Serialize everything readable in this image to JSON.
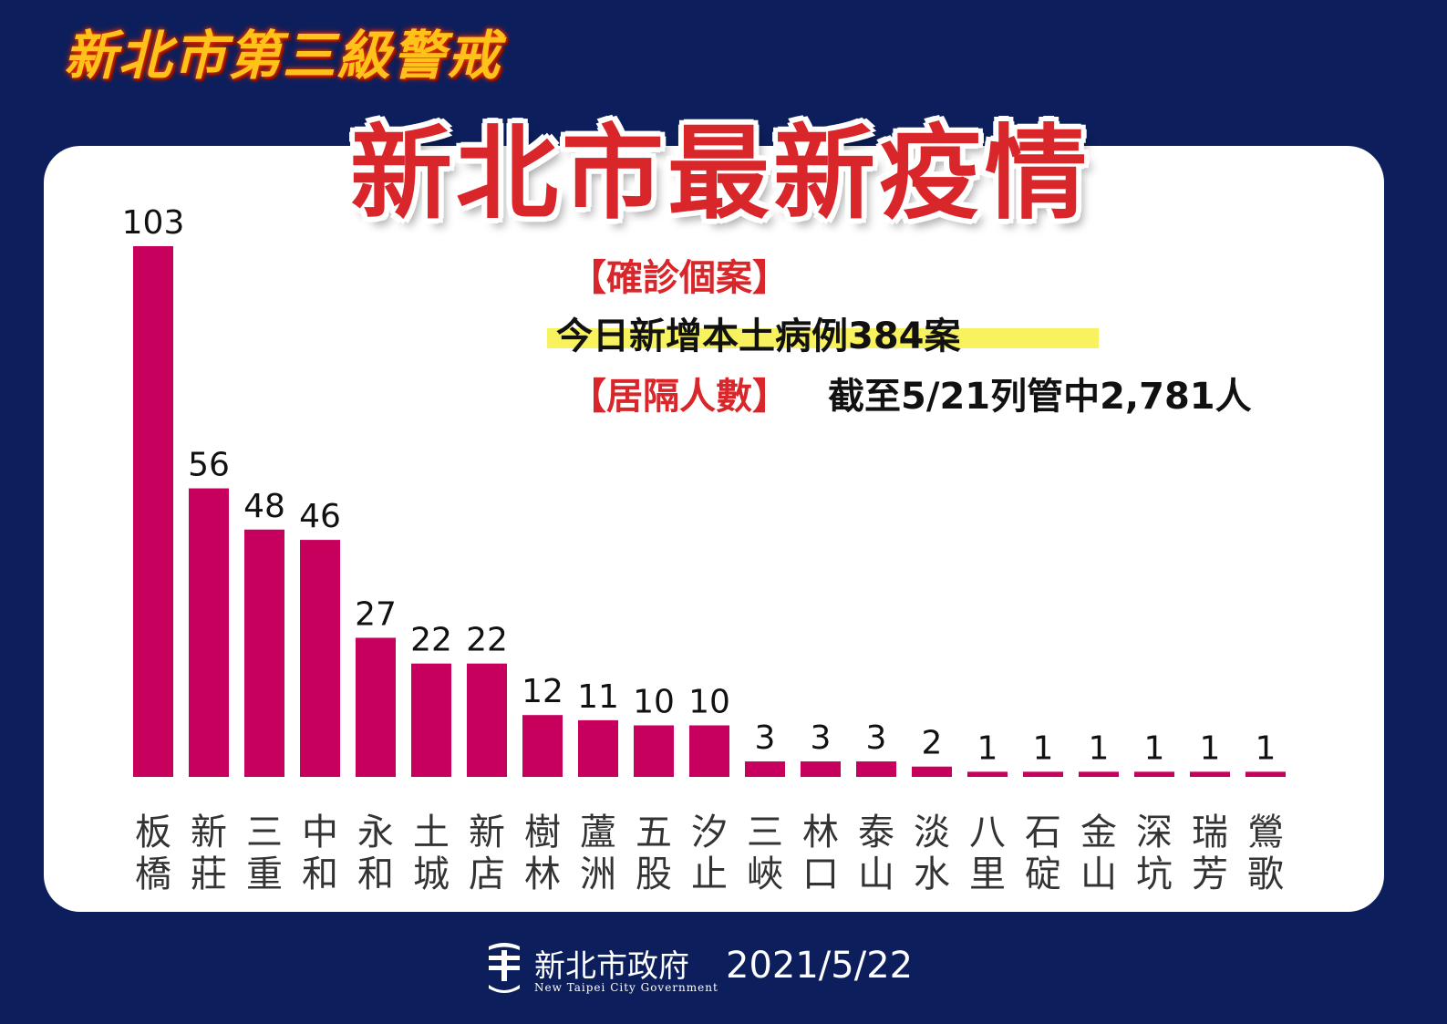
{
  "banner": "新北市第三級警戒",
  "main_title": "新北市最新疫情",
  "info": {
    "cases_label": "【確診個案】",
    "cases_text": "今日新增本土病例384案",
    "quarantine_label": "【居隔人數】",
    "quarantine_text": "截至5/21列管中2,781人"
  },
  "footer": {
    "org_name": "新北市政府",
    "org_name_en": "New Taipei City Government",
    "date": "2021/5/22"
  },
  "colors": {
    "bar": "#c8005d",
    "background": "#0c1f5c",
    "accent_red": "#d8262a"
  },
  "chart_data": {
    "type": "bar",
    "categories": [
      "板橋",
      "新莊",
      "三重",
      "中和",
      "永和",
      "土城",
      "新店",
      "樹林",
      "蘆洲",
      "五股",
      "汐止",
      "三峽",
      "林口",
      "泰山",
      "淡水",
      "八里",
      "石碇",
      "金山",
      "深坑",
      "瑞芳",
      "鶯歌"
    ],
    "values": [
      103,
      56,
      48,
      46,
      27,
      22,
      22,
      12,
      11,
      10,
      10,
      3,
      3,
      3,
      2,
      1,
      1,
      1,
      1,
      1,
      1
    ],
    "ylim": [
      0,
      103
    ],
    "grid": false,
    "legend": "none"
  }
}
